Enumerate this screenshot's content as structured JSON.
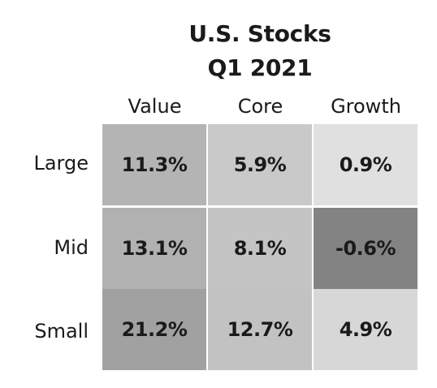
{
  "chart_data": {
    "type": "heatmap",
    "title": "U.S. Stocks",
    "subtitle": "Q1 2021",
    "columns": [
      "Value",
      "Core",
      "Growth"
    ],
    "rows": [
      "Large",
      "Mid",
      "Small"
    ],
    "values": [
      [
        11.3,
        5.9,
        0.9
      ],
      [
        13.1,
        8.1,
        -0.6
      ],
      [
        21.2,
        12.7,
        4.9
      ]
    ],
    "labels": [
      [
        "11.3%",
        "5.9%",
        "0.9%"
      ],
      [
        "13.1%",
        "8.1%",
        "-0.6%"
      ],
      [
        "21.2%",
        "12.7%",
        "4.9%"
      ]
    ],
    "cell_colors": [
      [
        "#b4b4b4",
        "#c9c9c9",
        "#e0e0e0"
      ],
      [
        "#b1b1b1",
        "#c4c4c4",
        "#838383"
      ],
      [
        "#a1a1a1",
        "#c2c2c2",
        "#d7d7d7"
      ]
    ]
  }
}
